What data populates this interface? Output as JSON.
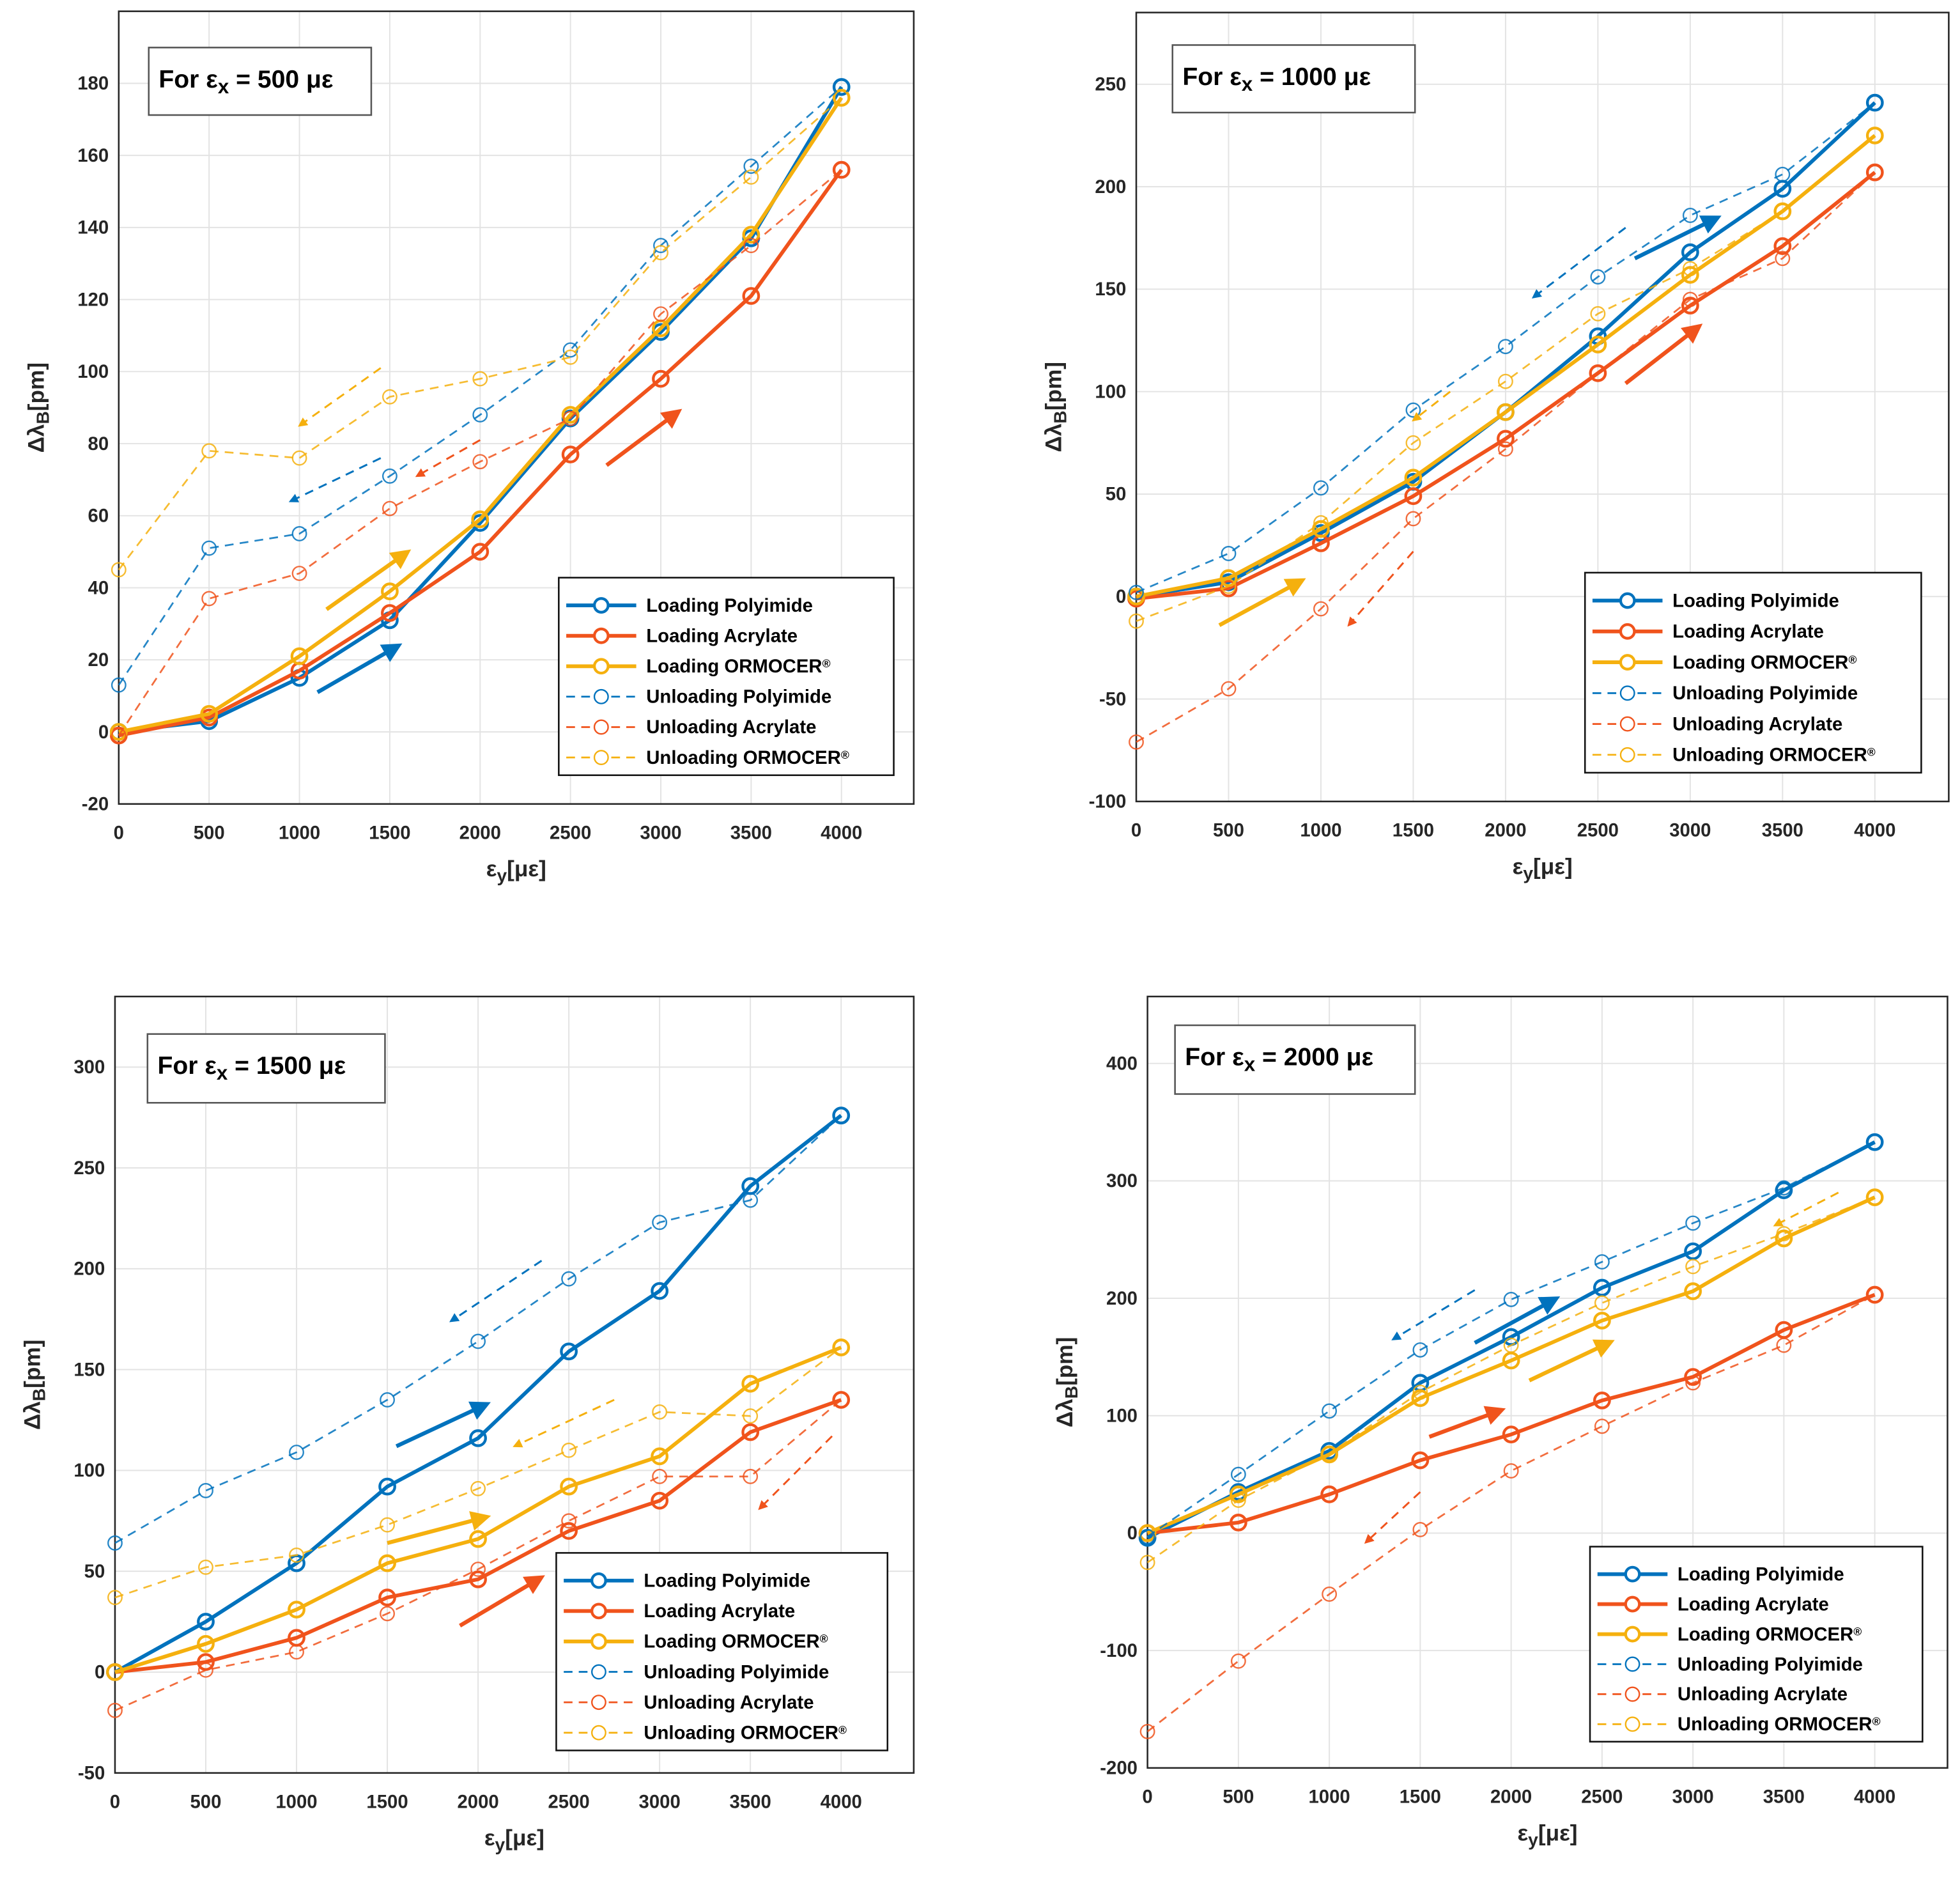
{
  "colors": {
    "polyimide": "#0072BD",
    "acrylate": "#F0531C",
    "ormocer": "#F5B00E",
    "grid": "#e3e3e3",
    "axis": "#262626"
  },
  "chart_data": [
    {
      "type": "line",
      "annotation": {
        "prefix": "For ε",
        "sub": "x",
        "suffix": " = 500 με"
      },
      "xlabel": {
        "main": "ε",
        "sub": "y",
        "rest": "[με]"
      },
      "ylabel": {
        "main": "Δλ",
        "sub": "B",
        "rest": "[pm]"
      },
      "xlim": [
        0,
        4400
      ],
      "ylim": [
        -20,
        200
      ],
      "xticks": [
        0,
        500,
        1000,
        1500,
        2000,
        2500,
        3000,
        3500,
        4000
      ],
      "yticks": [
        -20,
        0,
        20,
        40,
        60,
        80,
        100,
        120,
        140,
        160,
        180
      ],
      "grid": true,
      "legend": "bottom-right",
      "x": [
        0,
        500,
        1000,
        1500,
        2000,
        2500,
        3000,
        3500,
        4000
      ],
      "series": [
        {
          "name": "Loading Polyimide",
          "material": "polyimide",
          "style": "solid",
          "values": [
            0,
            3,
            15,
            31,
            58,
            87,
            111,
            137,
            179
          ]
        },
        {
          "name": "Loading Acrylate",
          "material": "acrylate",
          "style": "solid",
          "values": [
            -1,
            4,
            17,
            33,
            50,
            77,
            98,
            121,
            156
          ]
        },
        {
          "name": "Loading ORMOCER",
          "sup": "®",
          "material": "ormocer",
          "style": "solid",
          "values": [
            0,
            5,
            21,
            39,
            59,
            88,
            112,
            138,
            176
          ]
        },
        {
          "name": "Unloading Polyimide",
          "material": "polyimide",
          "style": "dashed",
          "values": [
            13,
            51,
            55,
            71,
            88,
            106,
            135,
            157,
            179
          ]
        },
        {
          "name": "Unloading Acrylate",
          "material": "acrylate",
          "style": "dashed",
          "values": [
            -1,
            37,
            44,
            62,
            75,
            87,
            116,
            135,
            156
          ]
        },
        {
          "name": "Unloading ORMOCER",
          "sup": "®",
          "material": "ormocer",
          "style": "dashed",
          "values": [
            45,
            78,
            76,
            93,
            98,
            104,
            133,
            154,
            176
          ]
        }
      ],
      "arrows": [
        {
          "material": "polyimide",
          "style": "solid",
          "from": [
            1100,
            11
          ],
          "to": [
            1550,
            24
          ]
        },
        {
          "material": "ormocer",
          "style": "solid",
          "from": [
            1150,
            34
          ],
          "to": [
            1600,
            50
          ]
        },
        {
          "material": "acrylate",
          "style": "solid",
          "from": [
            2700,
            74
          ],
          "to": [
            3100,
            89
          ]
        },
        {
          "material": "ormocer",
          "style": "dashed",
          "from": [
            1450,
            101
          ],
          "to": [
            1000,
            85
          ]
        },
        {
          "material": "polyimide",
          "style": "dashed",
          "from": [
            1450,
            76
          ],
          "to": [
            950,
            64
          ]
        },
        {
          "material": "acrylate",
          "style": "dashed",
          "from": [
            2000,
            81
          ],
          "to": [
            1650,
            71
          ]
        }
      ]
    },
    {
      "type": "line",
      "annotation": {
        "prefix": "For ε",
        "sub": "x",
        "suffix": " = 1000 με"
      },
      "xlabel": {
        "main": "ε",
        "sub": "y",
        "rest": "[με]"
      },
      "ylabel": {
        "main": "Δλ",
        "sub": "B",
        "rest": "[pm]"
      },
      "xlim": [
        0,
        4400
      ],
      "ylim": [
        -100,
        285
      ],
      "xticks": [
        0,
        500,
        1000,
        1500,
        2000,
        2500,
        3000,
        3500,
        4000
      ],
      "yticks": [
        -100,
        -50,
        0,
        50,
        100,
        150,
        200,
        250
      ],
      "grid": true,
      "legend": "bottom-right",
      "x": [
        0,
        500,
        1000,
        1500,
        2000,
        2500,
        3000,
        3500,
        4000
      ],
      "series": [
        {
          "name": "Loading Polyimide",
          "material": "polyimide",
          "style": "solid",
          "values": [
            0,
            7,
            31,
            56,
            90,
            127,
            168,
            199,
            241
          ]
        },
        {
          "name": "Loading Acrylate",
          "material": "acrylate",
          "style": "solid",
          "values": [
            -1,
            4,
            26,
            49,
            77,
            109,
            142,
            171,
            207
          ]
        },
        {
          "name": "Loading ORMOCER",
          "sup": "®",
          "material": "ormocer",
          "style": "solid",
          "values": [
            0,
            9,
            33,
            58,
            90,
            123,
            157,
            188,
            225
          ]
        },
        {
          "name": "Unloading Polyimide",
          "material": "polyimide",
          "style": "dashed",
          "values": [
            2,
            21,
            53,
            91,
            122,
            156,
            186,
            206,
            241
          ]
        },
        {
          "name": "Unloading Acrylate",
          "material": "acrylate",
          "style": "dashed",
          "values": [
            -71,
            -45,
            -6,
            38,
            72,
            109,
            145,
            165,
            207
          ]
        },
        {
          "name": "Unloading ORMOCER",
          "sup": "®",
          "material": "ormocer",
          "style": "dashed",
          "values": [
            -12,
            5,
            36,
            75,
            105,
            138,
            160,
            188,
            225
          ]
        }
      ],
      "arrows": [
        {
          "material": "ormocer",
          "style": "solid",
          "from": [
            450,
            -14
          ],
          "to": [
            900,
            8
          ]
        },
        {
          "material": "acrylate",
          "style": "solid",
          "from": [
            2650,
            104
          ],
          "to": [
            3050,
            132
          ]
        },
        {
          "material": "polyimide",
          "style": "solid",
          "from": [
            2700,
            165
          ],
          "to": [
            3150,
            185
          ]
        },
        {
          "material": "polyimide",
          "style": "dashed",
          "from": [
            2650,
            180
          ],
          "to": [
            2150,
            146
          ]
        },
        {
          "material": "ormocer",
          "style": "dashed",
          "from": [
            1700,
            100
          ],
          "to": [
            1500,
            86
          ]
        },
        {
          "material": "acrylate",
          "style": "dashed",
          "from": [
            1500,
            22
          ],
          "to": [
            1150,
            -14
          ]
        }
      ]
    },
    {
      "type": "line",
      "annotation": {
        "prefix": "For ε",
        "sub": "x",
        "suffix": " = 1500 με"
      },
      "xlabel": {
        "main": "ε",
        "sub": "y",
        "rest": "[με]"
      },
      "ylabel": {
        "main": "Δλ",
        "sub": "B",
        "rest": "[pm]"
      },
      "xlim": [
        0,
        4400
      ],
      "ylim": [
        -50,
        335
      ],
      "xticks": [
        0,
        500,
        1000,
        1500,
        2000,
        2500,
        3000,
        3500,
        4000
      ],
      "yticks": [
        -50,
        0,
        50,
        100,
        150,
        200,
        250,
        300
      ],
      "grid": true,
      "legend": "bottom-right",
      "x": [
        0,
        500,
        1000,
        1500,
        2000,
        2500,
        3000,
        3500,
        4000
      ],
      "series": [
        {
          "name": "Loading Polyimide",
          "material": "polyimide",
          "style": "solid",
          "values": [
            0,
            25,
            54,
            92,
            116,
            159,
            189,
            241,
            276
          ]
        },
        {
          "name": "Loading Acrylate",
          "material": "acrylate",
          "style": "solid",
          "values": [
            0,
            5,
            17,
            37,
            46,
            70,
            85,
            119,
            135
          ]
        },
        {
          "name": "Loading ORMOCER",
          "sup": "®",
          "material": "ormocer",
          "style": "solid",
          "values": [
            0,
            14,
            31,
            54,
            66,
            92,
            107,
            143,
            161
          ]
        },
        {
          "name": "Unloading Polyimide",
          "material": "polyimide",
          "style": "dashed",
          "values": [
            64,
            90,
            109,
            135,
            164,
            195,
            223,
            234,
            276
          ]
        },
        {
          "name": "Unloading Acrylate",
          "material": "acrylate",
          "style": "dashed",
          "values": [
            -19,
            1,
            10,
            29,
            51,
            75,
            97,
            97,
            135
          ]
        },
        {
          "name": "Unloading ORMOCER",
          "sup": "®",
          "material": "ormocer",
          "style": "dashed",
          "values": [
            37,
            52,
            58,
            73,
            91,
            110,
            129,
            127,
            161
          ]
        }
      ],
      "arrows": [
        {
          "material": "polyimide",
          "style": "solid",
          "from": [
            1550,
            112
          ],
          "to": [
            2050,
            133
          ]
        },
        {
          "material": "ormocer",
          "style": "solid",
          "from": [
            1500,
            64
          ],
          "to": [
            2050,
            77
          ]
        },
        {
          "material": "acrylate",
          "style": "solid",
          "from": [
            1900,
            23
          ],
          "to": [
            2350,
            47
          ]
        },
        {
          "material": "polyimide",
          "style": "dashed",
          "from": [
            2350,
            204
          ],
          "to": [
            1850,
            174
          ]
        },
        {
          "material": "ormocer",
          "style": "dashed",
          "from": [
            2750,
            135
          ],
          "to": [
            2200,
            112
          ]
        },
        {
          "material": "acrylate",
          "style": "dashed",
          "from": [
            3950,
            117
          ],
          "to": [
            3550,
            81
          ]
        }
      ]
    },
    {
      "type": "line",
      "annotation": {
        "prefix": "For ε",
        "sub": "x",
        "suffix": " = 2000 με"
      },
      "xlabel": {
        "main": "ε",
        "sub": "y",
        "rest": "[με]"
      },
      "ylabel": {
        "main": "Δλ",
        "sub": "B",
        "rest": "[pm]"
      },
      "xlim": [
        0,
        4400
      ],
      "ylim": [
        -200,
        457
      ],
      "xticks": [
        0,
        500,
        1000,
        1500,
        2000,
        2500,
        3000,
        3500,
        4000
      ],
      "yticks": [
        -200,
        -100,
        0,
        100,
        200,
        300,
        400
      ],
      "grid": true,
      "legend": "bottom-right",
      "x": [
        0,
        500,
        1000,
        1500,
        2000,
        2500,
        3000,
        3500,
        4000
      ],
      "series": [
        {
          "name": "Loading Polyimide",
          "material": "polyimide",
          "style": "solid",
          "values": [
            -4,
            35,
            70,
            128,
            167,
            209,
            240,
            292,
            333
          ]
        },
        {
          "name": "Loading Acrylate",
          "material": "acrylate",
          "style": "solid",
          "values": [
            0,
            9,
            33,
            62,
            84,
            113,
            133,
            173,
            203
          ]
        },
        {
          "name": "Loading ORMOCER",
          "sup": "®",
          "material": "ormocer",
          "style": "solid",
          "values": [
            0,
            33,
            67,
            115,
            147,
            181,
            206,
            251,
            286
          ]
        },
        {
          "name": "Unloading Polyimide",
          "material": "polyimide",
          "style": "dashed",
          "values": [
            -3,
            50,
            104,
            156,
            199,
            231,
            264,
            294,
            333
          ]
        },
        {
          "name": "Unloading Acrylate",
          "material": "acrylate",
          "style": "dashed",
          "values": [
            -169,
            -109,
            -52,
            3,
            53,
            91,
            128,
            160,
            203
          ]
        },
        {
          "name": "Unloading ORMOCER",
          "sup": "®",
          "material": "ormocer",
          "style": "dashed",
          "values": [
            -25,
            28,
            68,
            120,
            160,
            196,
            227,
            255,
            286
          ]
        }
      ],
      "arrows": [
        {
          "material": "polyimide",
          "style": "solid",
          "from": [
            1800,
            162
          ],
          "to": [
            2250,
            200
          ]
        },
        {
          "material": "ormocer",
          "style": "solid",
          "from": [
            2100,
            130
          ],
          "to": [
            2550,
            163
          ]
        },
        {
          "material": "acrylate",
          "style": "solid",
          "from": [
            1550,
            82
          ],
          "to": [
            1950,
            105
          ]
        },
        {
          "material": "polyimide",
          "style": "dashed",
          "from": [
            1800,
            207
          ],
          "to": [
            1350,
            165
          ]
        },
        {
          "material": "ormocer",
          "style": "dashed",
          "from": [
            3800,
            290
          ],
          "to": [
            3450,
            262
          ]
        },
        {
          "material": "acrylate",
          "style": "dashed",
          "from": [
            1500,
            35
          ],
          "to": [
            1200,
            -8
          ]
        }
      ]
    }
  ]
}
